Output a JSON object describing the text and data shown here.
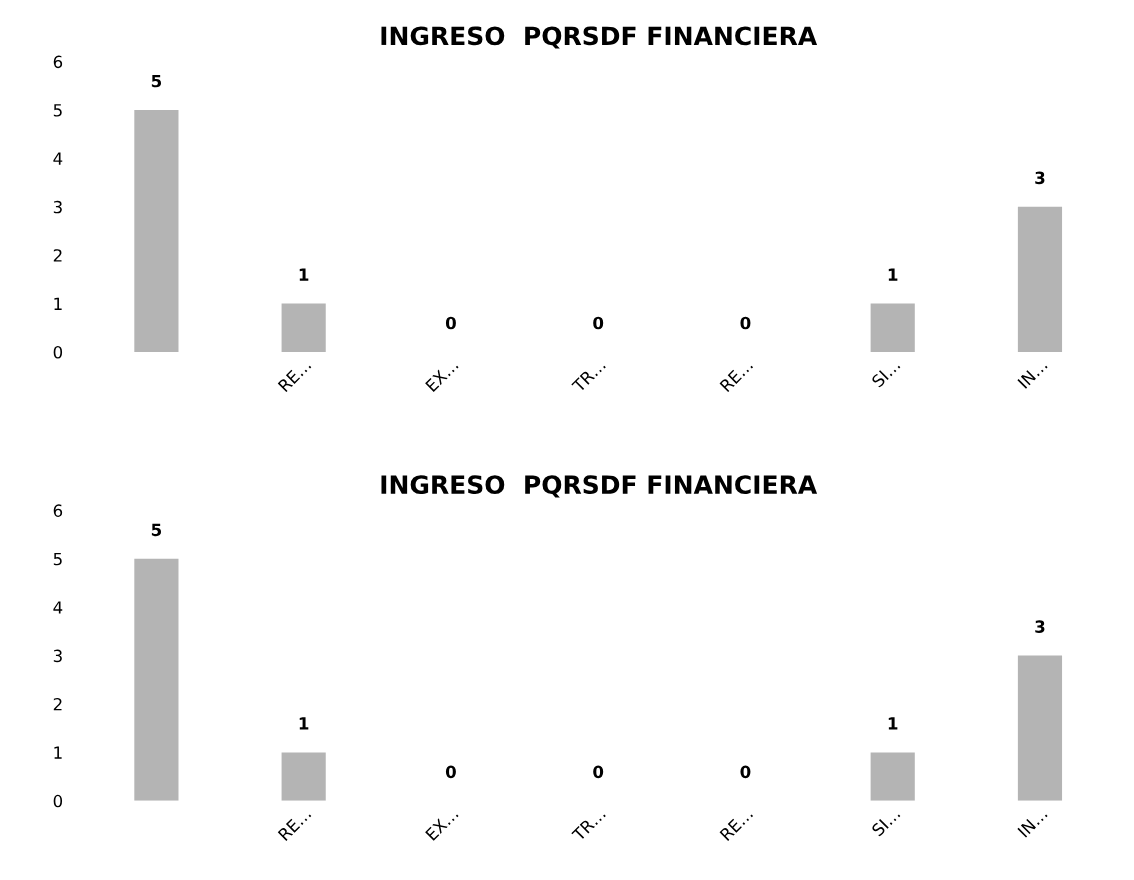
{
  "chart_data": [
    {
      "type": "bar",
      "title": "INGRESO  PQRSDF FINANCIERA",
      "categories": [
        null,
        "RE…",
        "EX…",
        "TR…",
        "RE…",
        "SI…",
        "IN…"
      ],
      "values": [
        5,
        1,
        0,
        0,
        0,
        1,
        3
      ],
      "color": "#b4b4b4",
      "ylim": [
        0,
        6
      ],
      "yticks": [
        0,
        1,
        2,
        3,
        4,
        5,
        6
      ],
      "data_labels": true,
      "grid": false,
      "legend": false
    },
    {
      "type": "bar",
      "title": "INGRESO  PQRSDF FINANCIERA",
      "categories": [
        null,
        "RE…",
        "EX…",
        "TR…",
        "RE…",
        "SI…",
        "IN…"
      ],
      "values": [
        5,
        1,
        0,
        0,
        0,
        1,
        3
      ],
      "color": "#b4b4b4",
      "ylim": [
        0,
        6
      ],
      "yticks": [
        0,
        1,
        2,
        3,
        4,
        5,
        6
      ],
      "data_labels": true,
      "grid": false,
      "legend": false
    }
  ]
}
